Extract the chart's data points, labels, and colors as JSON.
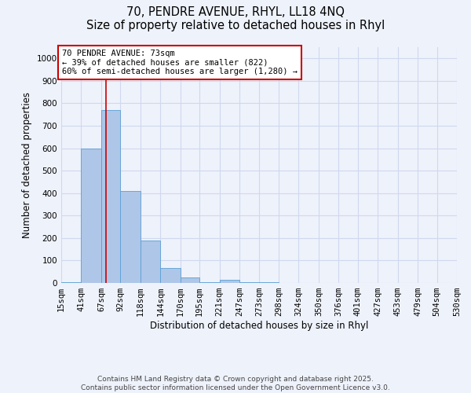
{
  "title_line1": "70, PENDRE AVENUE, RHYL, LL18 4NQ",
  "title_line2": "Size of property relative to detached houses in Rhyl",
  "xlabel": "Distribution of detached houses by size in Rhyl",
  "ylabel": "Number of detached properties",
  "bin_edges": [
    15,
    41,
    67,
    92,
    118,
    144,
    170,
    195,
    221,
    247,
    273,
    298,
    324,
    350,
    376,
    401,
    427,
    453,
    479,
    504,
    530
  ],
  "bar_heights": [
    5,
    600,
    770,
    410,
    190,
    65,
    25,
    5,
    15,
    3,
    2,
    1,
    0,
    0,
    0,
    0,
    0,
    0,
    0,
    0
  ],
  "bar_color": "#aec6e8",
  "bar_edge_color": "#5a9fd4",
  "property_size": 73,
  "vline_color": "#cc0000",
  "annotation_text": "70 PENDRE AVENUE: 73sqm\n← 39% of detached houses are smaller (822)\n60% of semi-detached houses are larger (1,280) →",
  "annotation_box_color": "#ffffff",
  "annotation_box_edge": "#cc0000",
  "ylim": [
    0,
    1050
  ],
  "yticks": [
    0,
    100,
    200,
    300,
    400,
    500,
    600,
    700,
    800,
    900,
    1000
  ],
  "footer_line1": "Contains HM Land Registry data © Crown copyright and database right 2025.",
  "footer_line2": "Contains public sector information licensed under the Open Government Licence v3.0.",
  "bg_color": "#eef2fb",
  "grid_color": "#d0d8ee",
  "title_fontsize": 10.5,
  "axis_label_fontsize": 8.5,
  "tick_fontsize": 7.5,
  "annotation_fontsize": 7.5,
  "footer_fontsize": 6.5
}
